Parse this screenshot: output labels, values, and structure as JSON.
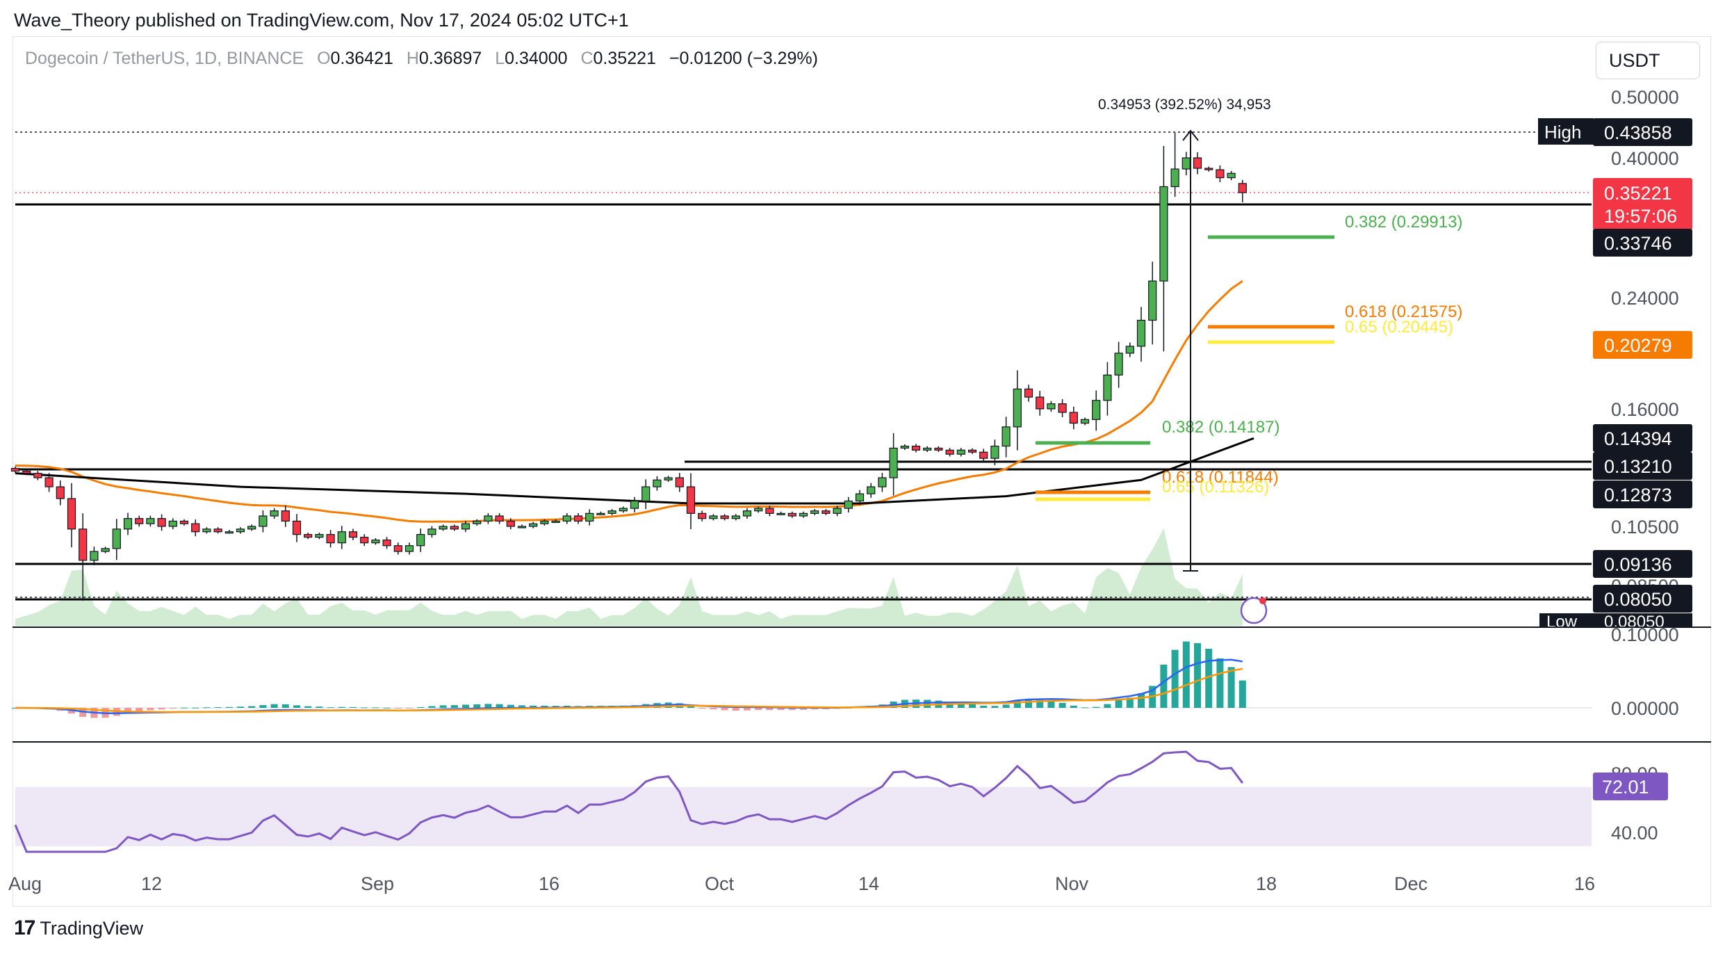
{
  "header": {
    "publisher": "Wave_Theory published on TradingView.com, Nov 17, 2024 05:02 UTC+1"
  },
  "legend": {
    "symbol": "Dogecoin / TetherUS, 1D, BINANCE",
    "open_label": "O",
    "open": "0.36421",
    "high_label": "H",
    "high": "0.36897",
    "low_label": "L",
    "low": "0.34000",
    "close_label": "C",
    "close": "0.35221",
    "change": "−0.01200 (−3.29%)"
  },
  "toolbar": {
    "currency": "USDT"
  },
  "footer": {
    "brand": "TradingView",
    "logo_glyph": "17"
  },
  "colors": {
    "up": "#4caf50",
    "down": "#f23645",
    "ema_fast": "#f57c00",
    "ema_slow": "#000000",
    "fib_382": "#4caf50",
    "fib_618": "#f57c00",
    "fib_65": "#ffeb3b",
    "macd": "#2962ff",
    "signal": "#ff9800",
    "rsi": "#7e57c2",
    "rsi_band": "#ede7f6"
  },
  "chart_data": {
    "type": "candlestick",
    "title": "Dogecoin / TetherUS, 1D, BINANCE",
    "price_scale": {
      "ticks": [
        "0.50000",
        "0.40000",
        "0.24000",
        "0.16000",
        "0.10500",
        "0.08500"
      ]
    },
    "x_ticks": [
      "Aug",
      "12",
      "Sep",
      "16",
      "Oct",
      "14",
      "Nov",
      "18",
      "Dec",
      "16"
    ],
    "closes": [
      0.128,
      0.127,
      0.125,
      0.121,
      0.116,
      0.104,
      0.093,
      0.096,
      0.097,
      0.104,
      0.108,
      0.106,
      0.108,
      0.105,
      0.107,
      0.106,
      0.103,
      0.104,
      0.103,
      0.103,
      0.104,
      0.105,
      0.109,
      0.111,
      0.107,
      0.102,
      0.101,
      0.102,
      0.099,
      0.103,
      0.101,
      0.099,
      0.1,
      0.098,
      0.096,
      0.098,
      0.102,
      0.104,
      0.105,
      0.104,
      0.106,
      0.107,
      0.109,
      0.107,
      0.105,
      0.105,
      0.106,
      0.107,
      0.107,
      0.109,
      0.107,
      0.11,
      0.11,
      0.111,
      0.112,
      0.115,
      0.121,
      0.124,
      0.125,
      0.121,
      0.11,
      0.108,
      0.109,
      0.108,
      0.109,
      0.111,
      0.112,
      0.11,
      0.11,
      0.109,
      0.11,
      0.111,
      0.11,
      0.112,
      0.115,
      0.118,
      0.121,
      0.125,
      0.139,
      0.14,
      0.138,
      0.139,
      0.138,
      0.136,
      0.138,
      0.137,
      0.134,
      0.14,
      0.15,
      0.172,
      0.167,
      0.16,
      0.163,
      0.158,
      0.152,
      0.154,
      0.165,
      0.181,
      0.196,
      0.201,
      0.221,
      0.255,
      0.36,
      0.384,
      0.4,
      0.385,
      0.383,
      0.372,
      0.378,
      0.352
    ],
    "series": [
      {
        "name": "Volume"
      },
      {
        "name": "MACD"
      },
      {
        "name": "RSI"
      }
    ],
    "price_labels": {
      "high_label": "High",
      "high": "0.43858",
      "current": "0.35221",
      "countdown": "19:57:06",
      "l1": "0.33746",
      "ema": "0.20279",
      "l2": "0.14394",
      "l3": "0.13210",
      "l4": "0.12873",
      "l5": "0.09136",
      "l6": "0.08050",
      "low_label": "Low",
      "low": "0.08050"
    },
    "fib_labels": {
      "upper_382": "0.382 (0.29913)",
      "upper_618": "0.618 (0.21575)",
      "upper_65": "0.65 (0.20445)",
      "lower_382": "0.382 (0.14187)",
      "lower_618": "0.618 (0.11844)",
      "lower_65": "0.65 (0.11326)"
    },
    "measure_label": "0.34953 (392.52%) 34,953",
    "macd_ticks": [
      "0.10000",
      "0.00000"
    ],
    "rsi": {
      "value": "72.01",
      "ticks": [
        "80.00",
        "40.00"
      ]
    }
  }
}
